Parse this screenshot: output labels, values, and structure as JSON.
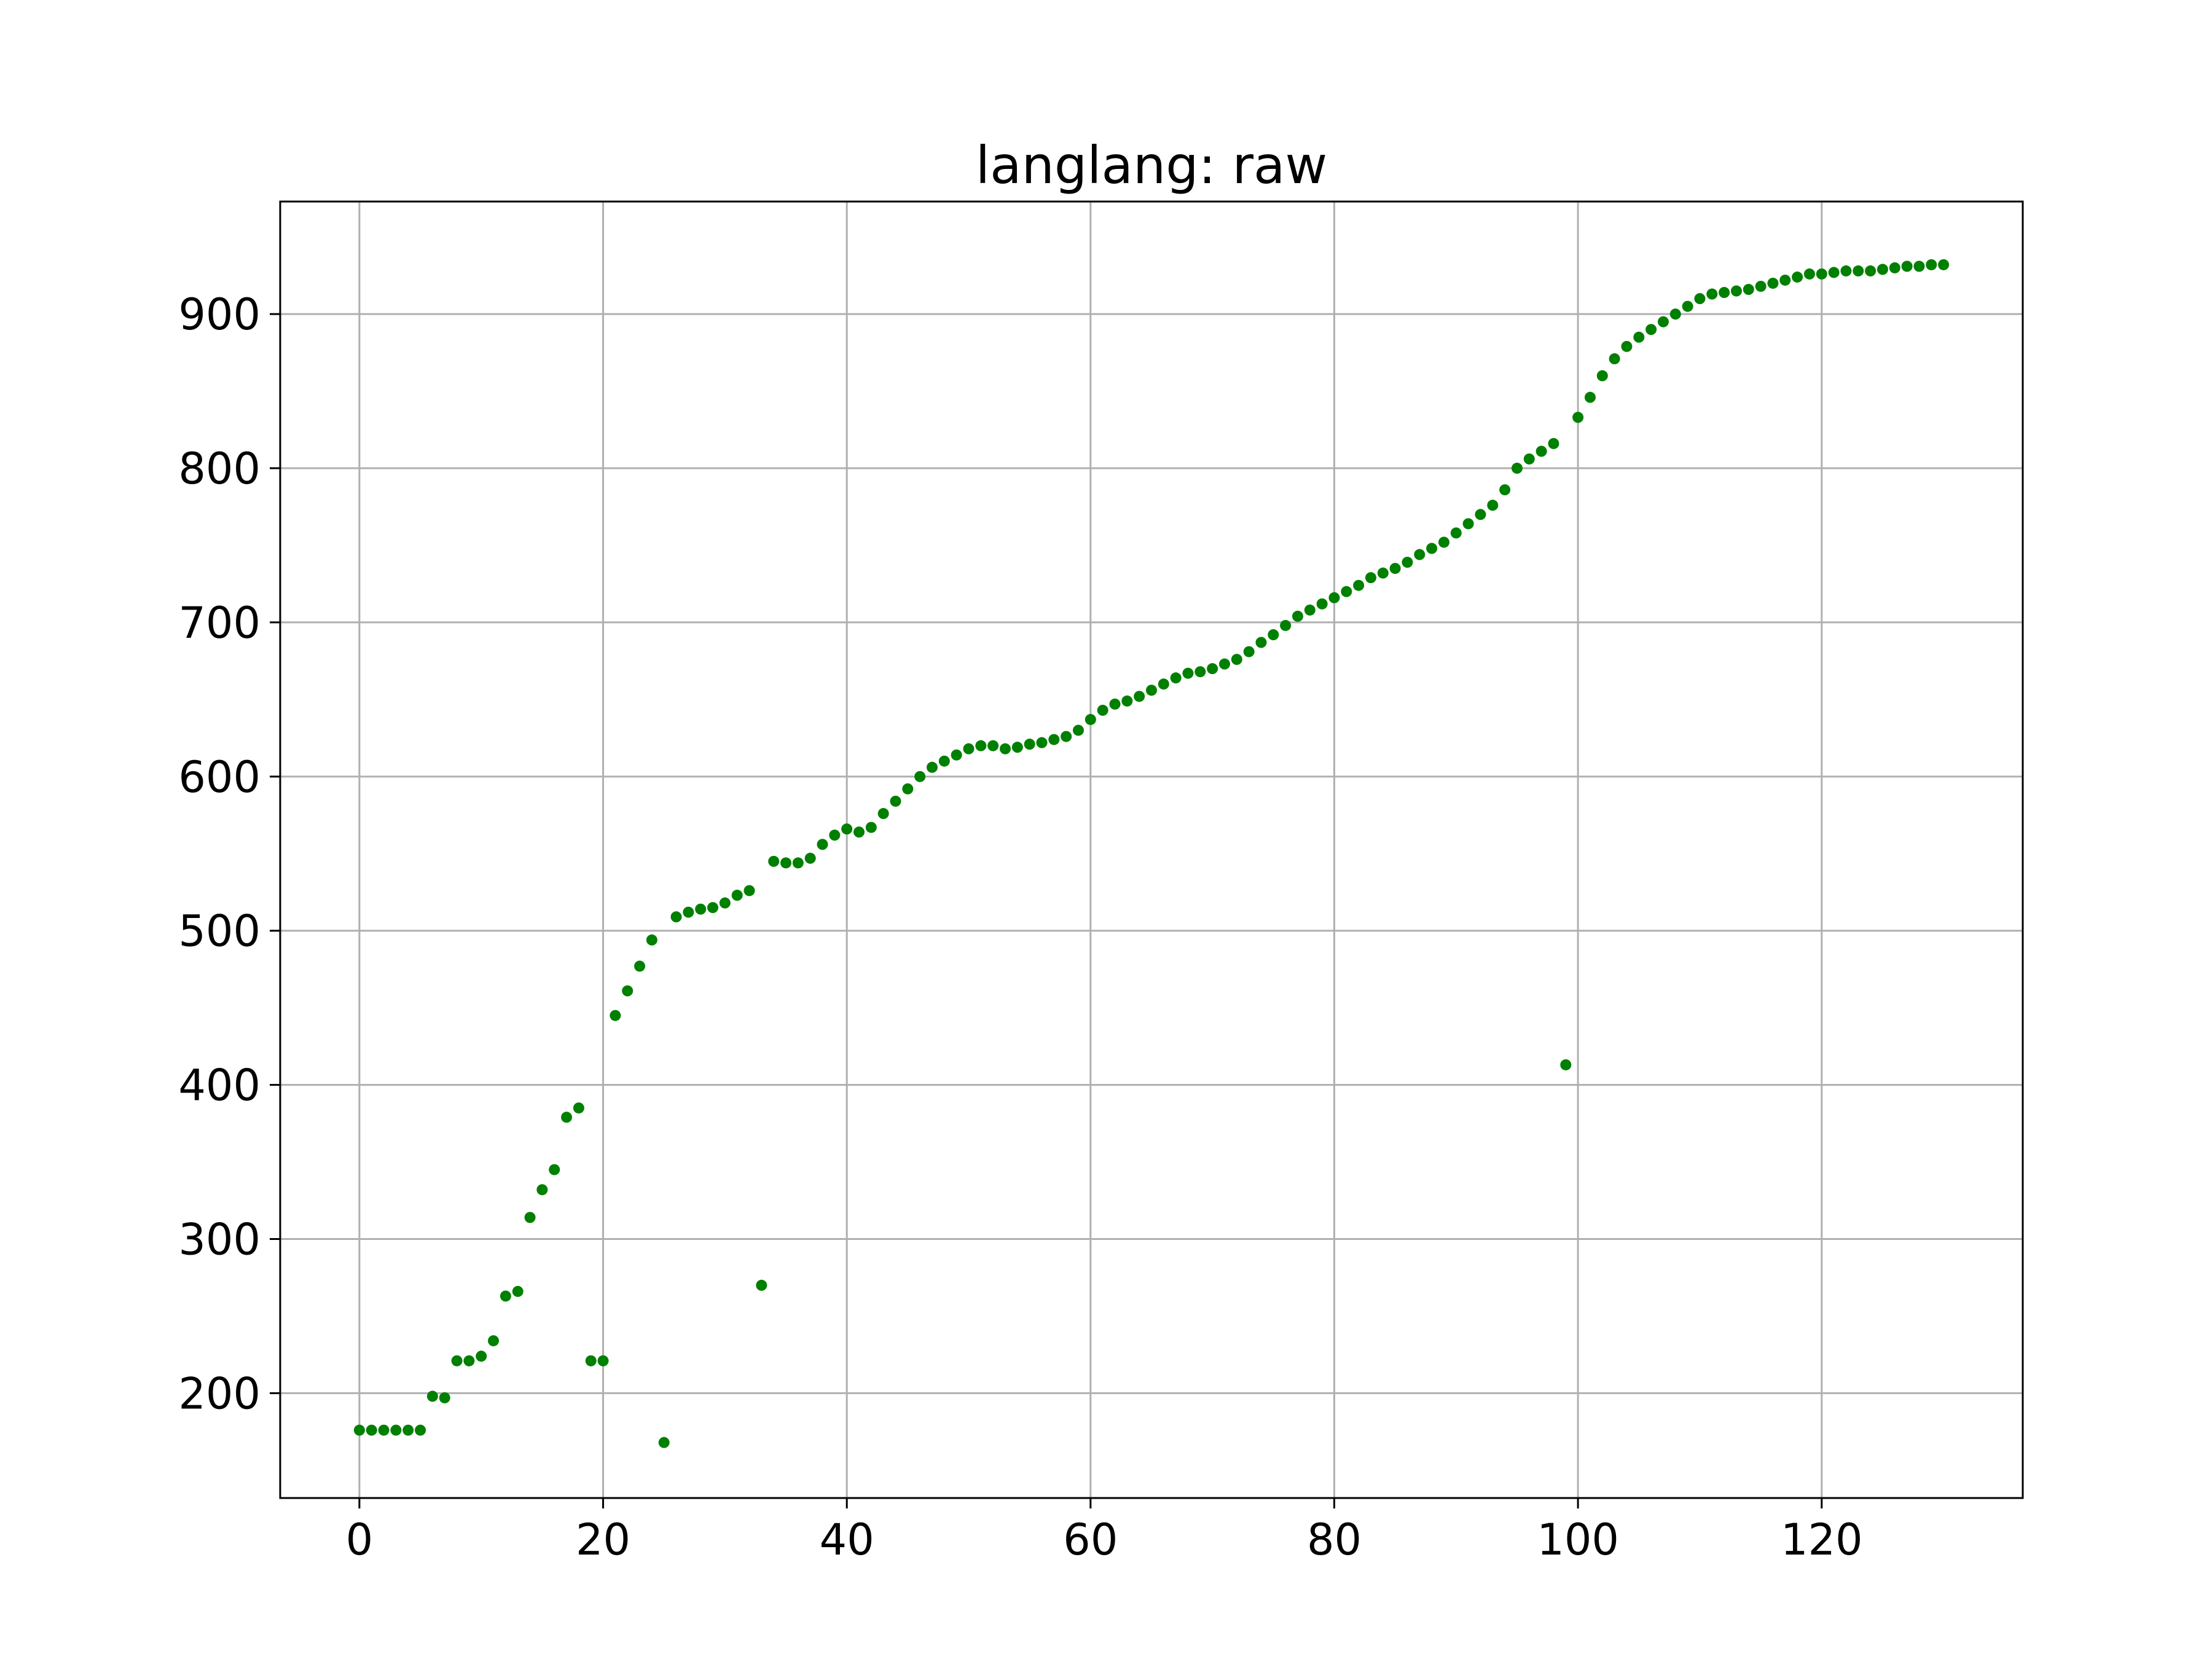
{
  "chart_data": {
    "type": "scatter",
    "title": "langlang: raw",
    "xlabel": "",
    "ylabel": "",
    "xlim": [
      -6.5,
      136.5
    ],
    "ylim": [
      132,
      973
    ],
    "xticks": [
      0,
      20,
      40,
      60,
      80,
      100,
      120
    ],
    "yticks": [
      200,
      300,
      400,
      500,
      600,
      700,
      800,
      900
    ],
    "grid": true,
    "legend": "none",
    "marker_color": "#008000",
    "grid_color": "#b0b0b0",
    "series": [
      {
        "x": [
          0,
          1,
          2,
          3,
          4,
          5,
          6,
          7,
          8,
          9,
          10,
          11,
          12,
          13,
          14,
          15,
          16,
          17,
          18,
          19,
          20,
          21,
          22,
          23,
          24,
          25,
          26,
          27,
          28,
          29,
          30,
          31,
          32,
          33,
          34,
          35,
          36,
          37,
          38,
          39,
          40,
          41,
          42,
          43,
          44,
          45,
          46,
          47,
          48,
          49,
          50,
          51,
          52,
          53,
          54,
          55,
          56,
          57,
          58,
          59,
          60,
          61,
          62,
          63,
          64,
          65,
          66,
          67,
          68,
          69,
          70,
          71,
          72,
          73,
          74,
          75,
          76,
          77,
          78,
          79,
          80,
          81,
          82,
          83,
          84,
          85,
          86,
          87,
          88,
          89,
          90,
          91,
          92,
          93,
          94,
          95,
          96,
          97,
          98,
          99,
          100,
          101,
          102,
          103,
          104,
          105,
          106,
          107,
          108,
          109,
          110,
          111,
          112,
          113,
          114,
          115,
          116,
          117,
          118,
          119,
          120,
          121,
          122,
          123,
          124,
          125,
          126,
          127,
          128,
          129,
          130
        ],
        "y": [
          176,
          176,
          176,
          176,
          176,
          176,
          198,
          197,
          221,
          221,
          224,
          234,
          263,
          266,
          314,
          332,
          345,
          379,
          385,
          221,
          221,
          445,
          461,
          477,
          494,
          168,
          509,
          512,
          514,
          515,
          518,
          523,
          526,
          270,
          545,
          544,
          544,
          547,
          556,
          562,
          566,
          564,
          567,
          576,
          584,
          592,
          600,
          606,
          610,
          614,
          618,
          620,
          620,
          618,
          619,
          621,
          622,
          624,
          626,
          630,
          637,
          643,
          647,
          649,
          652,
          656,
          660,
          664,
          667,
          668,
          670,
          673,
          676,
          681,
          687,
          692,
          698,
          704,
          708,
          712,
          716,
          720,
          724,
          729,
          732,
          735,
          739,
          744,
          748,
          752,
          758,
          764,
          770,
          776,
          786,
          800,
          806,
          811,
          816,
          413,
          833,
          846,
          860,
          871,
          879,
          885,
          890,
          895,
          900,
          905,
          910,
          913,
          914,
          915,
          916,
          918,
          920,
          922,
          924,
          926,
          926,
          927,
          928,
          928,
          928,
          929,
          930,
          931,
          931,
          932,
          932
        ]
      }
    ]
  }
}
